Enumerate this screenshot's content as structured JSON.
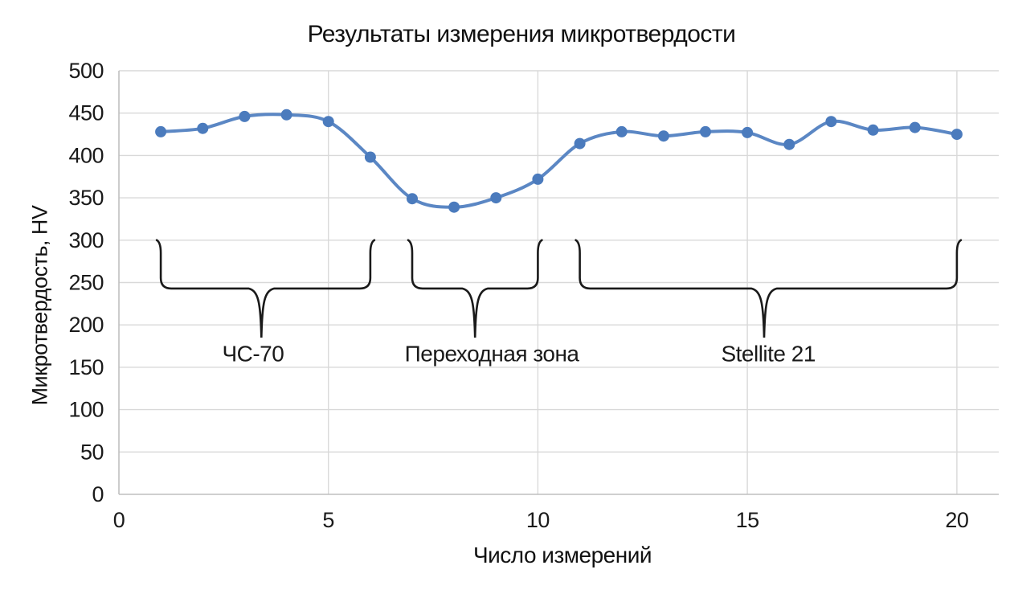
{
  "chart_data": {
    "type": "line",
    "title": "Результаты измерения микротвердости",
    "xlabel": "Число измерений",
    "ylabel": "Микротвердость, HV",
    "x": [
      1,
      2,
      3,
      4,
      5,
      6,
      7,
      8,
      9,
      10,
      11,
      12,
      13,
      14,
      15,
      16,
      17,
      18,
      19,
      20
    ],
    "values": [
      428,
      432,
      446,
      448,
      440,
      398,
      349,
      339,
      350,
      372,
      414,
      428,
      423,
      428,
      427,
      413,
      440,
      430,
      433,
      425
    ],
    "xlim": [
      0,
      21
    ],
    "ylim": [
      0,
      500
    ],
    "x_ticks": [
      0,
      5,
      10,
      15,
      20
    ],
    "y_ticks": [
      0,
      50,
      100,
      150,
      200,
      250,
      300,
      350,
      400,
      450,
      500
    ],
    "grid": true,
    "legend": false,
    "smooth": true,
    "marker": "circle",
    "annotations": {
      "style": "brace",
      "arm_top_hv": 300,
      "bar_hv": 243,
      "tip_hv": 185,
      "label_hv": 166,
      "items": [
        {
          "label": "ЧС-70",
          "from_x": 1,
          "to_x": 6,
          "pointer_x": 3.4,
          "label_x": 3.2
        },
        {
          "label": "Переходная зона",
          "from_x": 7,
          "to_x": 10,
          "pointer_x": 8.5,
          "label_x": 8.9
        },
        {
          "label": "Stellite 21",
          "from_x": 11,
          "to_x": 20,
          "pointer_x": 15.4,
          "label_x": 15.5
        }
      ]
    },
    "colors": {
      "line": "#5b87c4",
      "marker": "#4b7bbd",
      "grid": "#d9d9d9",
      "axis": "#bfbfbf",
      "text": "#1a1a1a",
      "brace": "#1a1a1a"
    }
  }
}
